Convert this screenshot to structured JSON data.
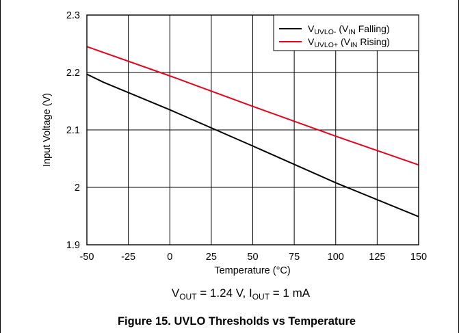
{
  "chart_data": {
    "type": "line",
    "title": "",
    "xlabel": "Temperature (°C)",
    "ylabel": "Input Voltage (V)",
    "xlim": [
      -50,
      150
    ],
    "ylim": [
      1.9,
      2.3
    ],
    "x_ticks": [
      "-50",
      "-25",
      "0",
      "25",
      "50",
      "75",
      "100",
      "125",
      "150"
    ],
    "y_ticks": [
      "1.9",
      "2",
      "2.1",
      "2.2",
      "2.3"
    ],
    "grid": true,
    "legend_position": "top-right",
    "series": [
      {
        "name": "VUVLO- (VIN Falling)",
        "color": "#000000",
        "x": [
          -50,
          -40,
          0,
          50,
          100,
          150
        ],
        "y": [
          2.197,
          2.183,
          2.135,
          2.072,
          2.008,
          1.949
        ]
      },
      {
        "name": "VUVLO+ (VIN Rising)",
        "color": "#e8001c",
        "x": [
          -50,
          0,
          50,
          100,
          150
        ],
        "y": [
          2.245,
          2.194,
          2.141,
          2.089,
          2.039
        ]
      }
    ],
    "legend": {
      "falling": {
        "v": "V",
        "v_sub": "UVLO-",
        "open": " (V",
        "in_sub": "IN",
        "rest": " Falling)"
      },
      "rising": {
        "v": "V",
        "v_sub": "UVLO+",
        "open": " (V",
        "in_sub": "IN",
        "rest": " Rising)"
      }
    },
    "conditions": {
      "v": "V",
      "v_sub": "OUT",
      "v_value": " = 1.24 V, I",
      "i_sub": "OUT",
      "i_value": " = 1 mA"
    }
  },
  "caption": "Figure 15. UVLO Thresholds vs Temperature"
}
